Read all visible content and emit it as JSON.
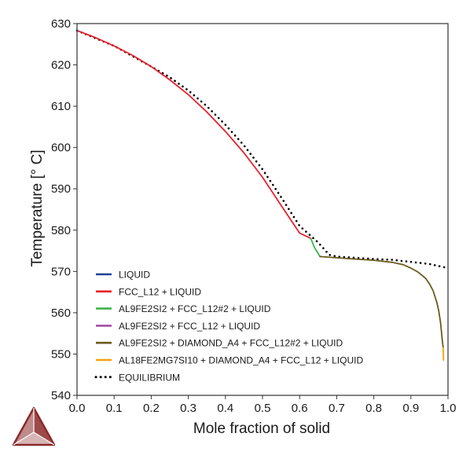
{
  "chart_data": {
    "type": "line",
    "xlabel": "Mole fraction of solid",
    "ylabel": "Temperature [° C]",
    "xlim": [
      0.0,
      1.0
    ],
    "ylim": [
      540,
      630
    ],
    "xticks": [
      "0.0",
      "0.1",
      "0.2",
      "0.3",
      "0.4",
      "0.5",
      "0.6",
      "0.7",
      "0.8",
      "0.9",
      "1.0"
    ],
    "yticks": [
      "540",
      "550",
      "560",
      "570",
      "580",
      "590",
      "600",
      "610",
      "620",
      "630"
    ],
    "grid": false,
    "legend_position": "bottom-left",
    "series": [
      {
        "name": "LIQUID",
        "color": "#1f3f9a",
        "style": "solid",
        "x": [
          0.0,
          0.001
        ],
        "y": [
          628.3,
          628.2
        ]
      },
      {
        "name": "FCC_L12 + LIQUID",
        "color": "#e8202a",
        "style": "solid",
        "x": [
          0.0,
          0.05,
          0.1,
          0.15,
          0.2,
          0.25,
          0.3,
          0.35,
          0.4,
          0.45,
          0.5,
          0.55,
          0.6,
          0.63
        ],
        "y": [
          628.3,
          626.6,
          624.6,
          622.3,
          619.6,
          616.4,
          612.8,
          608.6,
          603.9,
          598.7,
          592.8,
          586.0,
          579.3,
          578.0
        ]
      },
      {
        "name": "AL9FE2SI2 + FCC_L12#2 + LIQUID",
        "color": "#3cb44b",
        "style": "solid",
        "x": [
          0.63,
          0.64,
          0.655
        ],
        "y": [
          578.0,
          575.8,
          573.6
        ]
      },
      {
        "name": "AL9FE2SI2 + FCC_L12 + LIQUID",
        "color": "#a64ca6",
        "style": "solid",
        "x": [
          0.655,
          0.656
        ],
        "y": [
          573.6,
          573.6
        ]
      },
      {
        "name": "AL9FE2SI2 + DIAMOND_A4 + FCC_L12#2 + LIQUID",
        "color": "#6b5a1e",
        "style": "solid",
        "x": [
          0.655,
          0.7,
          0.75,
          0.8,
          0.85,
          0.88,
          0.9,
          0.92,
          0.94,
          0.95,
          0.96,
          0.97,
          0.975,
          0.98,
          0.985,
          0.987
        ],
        "y": [
          573.6,
          573.3,
          573.0,
          572.7,
          572.2,
          571.6,
          570.8,
          569.8,
          568.3,
          567.0,
          565.3,
          562.5,
          560.5,
          557.5,
          553.0,
          551.5
        ]
      },
      {
        "name": "AL18FE2MG7SI10 + DIAMOND_A4 + FCC_L12 + LIQUID",
        "color": "#f5a20a",
        "style": "solid",
        "x": [
          0.987,
          0.988
        ],
        "y": [
          551.5,
          548.5
        ]
      },
      {
        "name": "EQUILIBRIUM",
        "color": "#000000",
        "style": "dotted",
        "x": [
          0.0,
          0.1,
          0.2,
          0.25,
          0.3,
          0.35,
          0.4,
          0.45,
          0.5,
          0.55,
          0.6,
          0.65,
          0.68,
          0.7,
          0.75,
          0.8,
          0.85,
          0.9,
          0.95,
          1.0
        ],
        "y": [
          628.3,
          624.6,
          619.6,
          617.0,
          613.8,
          610.0,
          605.5,
          600.5,
          594.7,
          588.0,
          581.0,
          577.0,
          574.0,
          573.6,
          573.3,
          573.0,
          572.8,
          572.3,
          571.8,
          570.8
        ]
      }
    ]
  },
  "logo": {
    "name": "thermo-calc-logo",
    "color": "#8b2a2a"
  }
}
